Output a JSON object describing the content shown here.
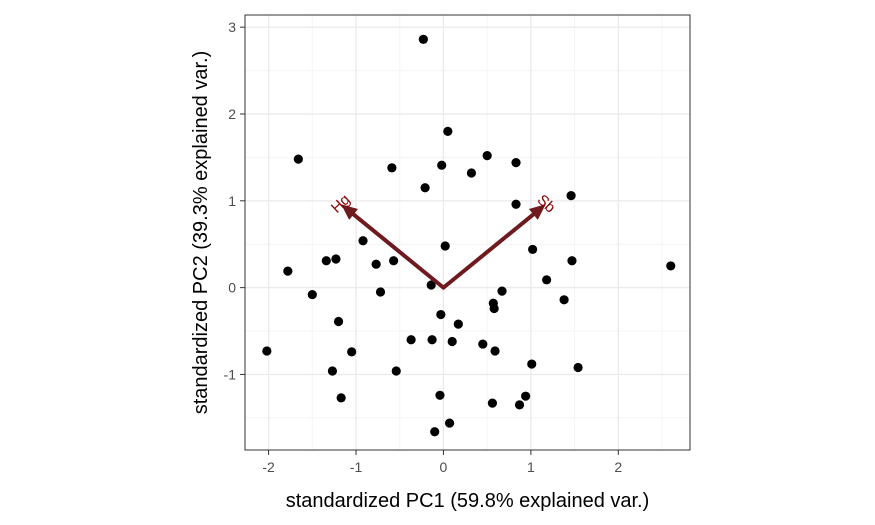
{
  "chart_data": {
    "type": "scatter",
    "title": "",
    "xlabel": "standardized PC1 (59.8% explained var.)",
    "ylabel": "standardized PC2 (39.3% explained var.)",
    "xlim": [
      -2.27,
      2.82
    ],
    "ylim": [
      -1.87,
      3.14
    ],
    "grid": true,
    "x_ticks": [
      -2,
      -1,
      0,
      1,
      2
    ],
    "y_ticks": [
      -1,
      0,
      1,
      2,
      3
    ],
    "points": [
      {
        "x": -0.23,
        "y": 2.86
      },
      {
        "x": 0.05,
        "y": 1.8
      },
      {
        "x": 0.5,
        "y": 1.52
      },
      {
        "x": -1.66,
        "y": 1.48
      },
      {
        "x": -0.02,
        "y": 1.41
      },
      {
        "x": 0.83,
        "y": 1.44
      },
      {
        "x": -0.59,
        "y": 1.38
      },
      {
        "x": 0.32,
        "y": 1.32
      },
      {
        "x": -0.21,
        "y": 1.15
      },
      {
        "x": 1.46,
        "y": 1.06
      },
      {
        "x": 0.83,
        "y": 0.96
      },
      {
        "x": -0.92,
        "y": 0.54
      },
      {
        "x": 0.02,
        "y": 0.48
      },
      {
        "x": 1.02,
        "y": 0.44
      },
      {
        "x": -1.34,
        "y": 0.31
      },
      {
        "x": -1.23,
        "y": 0.33
      },
      {
        "x": -0.57,
        "y": 0.31
      },
      {
        "x": -0.77,
        "y": 0.27
      },
      {
        "x": 1.47,
        "y": 0.31
      },
      {
        "x": 2.6,
        "y": 0.25
      },
      {
        "x": -1.78,
        "y": 0.19
      },
      {
        "x": 1.18,
        "y": 0.09
      },
      {
        "x": -0.14,
        "y": 0.03
      },
      {
        "x": -0.72,
        "y": -0.05
      },
      {
        "x": 0.67,
        "y": -0.04
      },
      {
        "x": -1.5,
        "y": -0.08
      },
      {
        "x": 1.38,
        "y": -0.14
      },
      {
        "x": 0.57,
        "y": -0.18
      },
      {
        "x": 0.58,
        "y": -0.24
      },
      {
        "x": -0.03,
        "y": -0.31
      },
      {
        "x": -1.2,
        "y": -0.39
      },
      {
        "x": 0.17,
        "y": -0.42
      },
      {
        "x": -0.37,
        "y": -0.6
      },
      {
        "x": -0.13,
        "y": -0.6
      },
      {
        "x": 0.1,
        "y": -0.62
      },
      {
        "x": 0.45,
        "y": -0.65
      },
      {
        "x": 0.59,
        "y": -0.73
      },
      {
        "x": -2.02,
        "y": -0.73
      },
      {
        "x": -1.05,
        "y": -0.74
      },
      {
        "x": 1.01,
        "y": -0.88
      },
      {
        "x": 1.54,
        "y": -0.92
      },
      {
        "x": -1.27,
        "y": -0.96
      },
      {
        "x": -0.54,
        "y": -0.96
      },
      {
        "x": -0.04,
        "y": -1.24
      },
      {
        "x": -1.17,
        "y": -1.27
      },
      {
        "x": 0.94,
        "y": -1.25
      },
      {
        "x": 0.56,
        "y": -1.33
      },
      {
        "x": 0.87,
        "y": -1.35
      },
      {
        "x": 0.07,
        "y": -1.56
      },
      {
        "x": -0.1,
        "y": -1.66
      }
    ],
    "arrows": [
      {
        "label": "Hg",
        "x": -1.17,
        "y": 0.96,
        "angle": -43
      },
      {
        "label": "Sb",
        "x": 1.17,
        "y": 0.96,
        "angle": 43
      }
    ],
    "colors": {
      "points": "#000000",
      "arrows": "#6e1a1e",
      "arrow_labels": "#8b0000",
      "grid_major": "#ebebeb",
      "grid_minor": "#f4f4f4",
      "panel_border": "#333333"
    }
  }
}
